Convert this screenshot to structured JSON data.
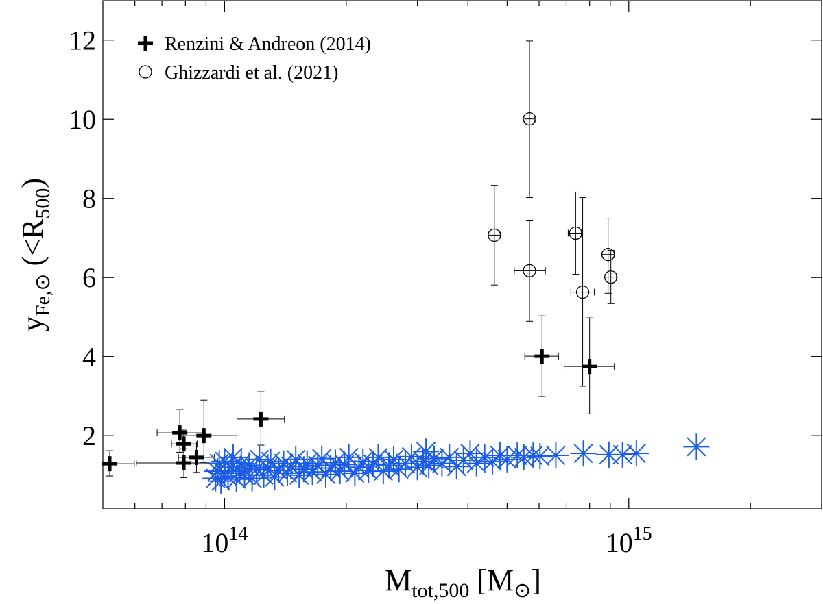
{
  "chart_data": {
    "type": "scatter",
    "xlabel": [
      {
        "text": "M"
      },
      {
        "text": "tot,500",
        "sub": true
      },
      {
        "text": " [M"
      },
      {
        "text": "⊙",
        "sub": true
      },
      {
        "text": "]"
      }
    ],
    "ylabel": [
      {
        "text": "y"
      },
      {
        "text": "Fe,⊙",
        "sub": true
      },
      {
        "text": " (<R"
      },
      {
        "text": "500",
        "sub": true
      },
      {
        "text": ")"
      }
    ],
    "xscale": "log",
    "xlim": [
      50000000000000.0,
      3000000000000000.0
    ],
    "ylim": [
      0.15,
      13
    ],
    "xticks": [
      {
        "value": 100000000000000.0,
        "label": "10",
        "superscript": "14"
      },
      {
        "value": 1000000000000000.0,
        "label": "10",
        "superscript": "15"
      }
    ],
    "xminorticks": [
      60000000000000.0,
      70000000000000.0,
      80000000000000.0,
      90000000000000.0,
      200000000000000.0,
      300000000000000.0,
      400000000000000.0,
      500000000000000.0,
      600000000000000.0,
      700000000000000.0,
      800000000000000.0,
      900000000000000.0,
      2000000000000000.0,
      3000000000000000.0
    ],
    "yticks": [
      2,
      4,
      6,
      8,
      10,
      12
    ],
    "legend": "upper left",
    "series": [
      {
        "name": "Renzini & Andreon (2014)",
        "marker": "plus",
        "color": "#000000",
        "x": [
          52000000000000.0,
          77500000000000.0,
          79300000000000.0,
          79300000000000.0,
          85200000000000.0,
          88900000000000.0,
          123000000000000.0,
          610000000000000.0,
          800000000000000.0
        ],
        "y": [
          1.29,
          2.07,
          1.79,
          1.31,
          1.45,
          2.0,
          2.42,
          4.01,
          3.75
        ],
        "x_lo": [
          49600000000000.0,
          68100000000000.0,
          73900000000000.0,
          60500000000000.0,
          76900000000000.0,
          76900000000000.0,
          107300000000000.0,
          553000000000000.0,
          692000000000000.0
        ],
        "x_hi": [
          59800000000000.0,
          88900000000000.0,
          85500000000000.0,
          100400000000000.0,
          94300000000000.0,
          107300000000000.0,
          140700000000000.0,
          670000000000000.0,
          921000000000000.0
        ],
        "y_lo": [
          0.98,
          1.58,
          1.45,
          0.94,
          1.07,
          1.33,
          1.76,
          2.99,
          2.55
        ],
        "y_hi": [
          1.62,
          2.66,
          2.14,
          1.67,
          1.84,
          2.9,
          3.11,
          5.03,
          4.98
        ]
      },
      {
        "name": "Ghizzardi et al. (2021)",
        "marker": "circle",
        "color": "#000000",
        "x": [
          465000000000000.0,
          568000000000000.0,
          568000000000000.0,
          739000000000000.0,
          769000000000000.0,
          889000000000000.0,
          903000000000000.0
        ],
        "y": [
          7.07,
          10.01,
          6.17,
          7.12,
          5.63,
          6.58,
          6.01
        ],
        "x_lo": [
          449000000000000.0,
          553000000000000.0,
          521000000000000.0,
          708000000000000.0,
          719000000000000.0,
          855000000000000.0,
          868000000000000.0
        ],
        "x_hi": [
          482000000000000.0,
          584000000000000.0,
          622000000000000.0,
          763000000000000.0,
          822000000000000.0,
          921000000000000.0,
          932000000000000.0
        ],
        "y_lo": [
          5.81,
          8.02,
          4.89,
          6.08,
          3.25,
          5.6,
          5.34
        ],
        "y_hi": [
          8.33,
          11.98,
          7.45,
          8.16,
          8.02,
          7.5,
          6.69
        ]
      },
      {
        "marker": "asterisk",
        "color": "#1a5ce6",
        "x": [
          95000000000000.0,
          96000000000000.0,
          97000000000000.0,
          98000000000000.0,
          100000000000000.0,
          100000000000000.0,
          102000000000000.0,
          104000000000000.0,
          105000000000000.0,
          107000000000000.0,
          109000000000000.0,
          110000000000000.0,
          112000000000000.0,
          115000000000000.0,
          117000000000000.0,
          120000000000000.0,
          122000000000000.0,
          125000000000000.0,
          128000000000000.0,
          130000000000000.0,
          133000000000000.0,
          136000000000000.0,
          140000000000000.0,
          143000000000000.0,
          146000000000000.0,
          150000000000000.0,
          153000000000000.0,
          157000000000000.0,
          160000000000000.0,
          165000000000000.0,
          170000000000000.0,
          174000000000000.0,
          178000000000000.0,
          183000000000000.0,
          188000000000000.0,
          193000000000000.0,
          198000000000000.0,
          203000000000000.0,
          210000000000000.0,
          215000000000000.0,
          220000000000000.0,
          227000000000000.0,
          233000000000000.0,
          240000000000000.0,
          247000000000000.0,
          255000000000000.0,
          262000000000000.0,
          270000000000000.0,
          280000000000000.0,
          290000000000000.0,
          300000000000000.0,
          310000000000000.0,
          315000000000000.0,
          320000000000000.0,
          330000000000000.0,
          345000000000000.0,
          360000000000000.0,
          375000000000000.0,
          390000000000000.0,
          405000000000000.0,
          420000000000000.0,
          440000000000000.0,
          460000000000000.0,
          480000000000000.0,
          500000000000000.0,
          530000000000000.0,
          550000000000000.0,
          580000000000000.0,
          603000000000000.0,
          660000000000000.0,
          772000000000000.0,
          893000000000000.0,
          965000000000000.0,
          1044000000000000.0,
          1470000000000000.0
        ],
        "y": [
          0.92,
          1.1,
          1.3,
          0.85,
          1.05,
          1.35,
          0.95,
          1.2,
          1.45,
          0.9,
          1.1,
          1.3,
          1.0,
          1.25,
          0.92,
          1.15,
          1.4,
          1.0,
          1.2,
          1.35,
          0.95,
          1.12,
          1.3,
          1.05,
          1.22,
          1.4,
          1.0,
          1.15,
          1.3,
          1.08,
          1.25,
          1.42,
          1.02,
          1.18,
          1.32,
          1.1,
          1.27,
          1.45,
          1.05,
          1.2,
          1.35,
          1.12,
          1.28,
          1.45,
          1.1,
          1.25,
          1.4,
          1.15,
          1.3,
          1.47,
          1.2,
          1.35,
          1.6,
          1.25,
          1.42,
          1.3,
          1.45,
          1.22,
          1.38,
          1.55,
          1.3,
          1.45,
          1.35,
          1.5,
          1.4,
          1.5,
          1.45,
          1.5,
          1.48,
          1.5,
          1.55,
          1.52,
          1.52,
          1.55,
          1.72
        ]
      }
    ]
  }
}
